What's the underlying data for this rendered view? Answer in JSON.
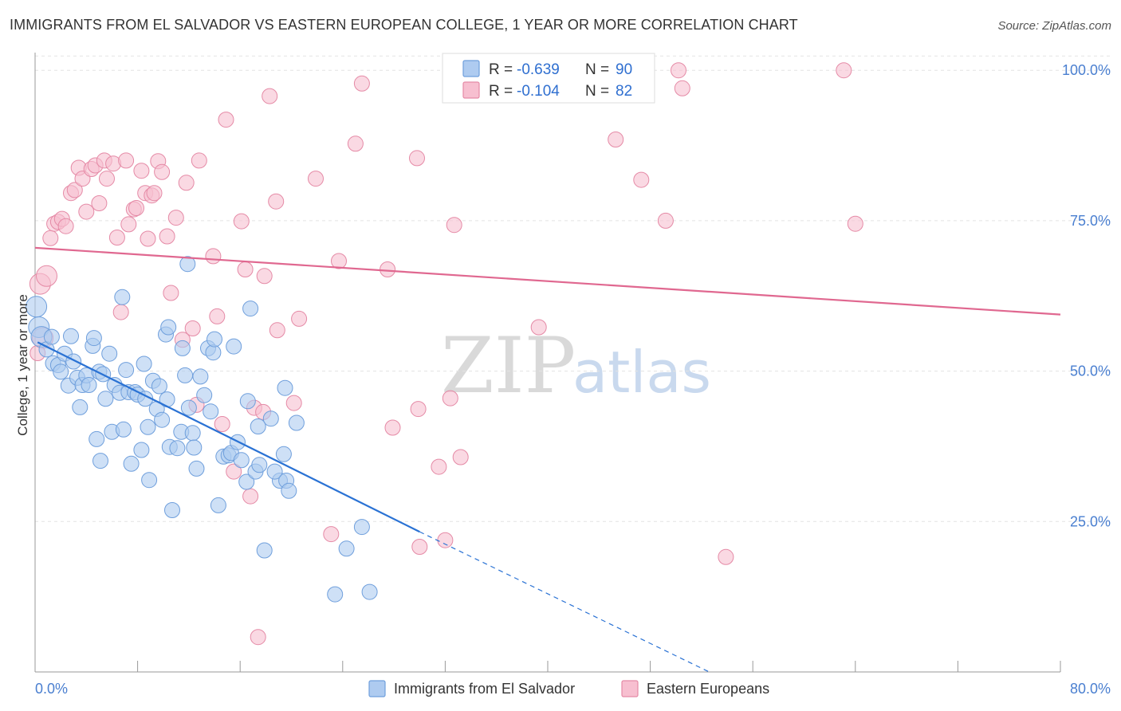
{
  "title": "IMMIGRANTS FROM EL SALVADOR VS EASTERN EUROPEAN COLLEGE, 1 YEAR OR MORE CORRELATION CHART",
  "source": "Source: ZipAtlas.com",
  "colors": {
    "blue_fill": "#aecbf0",
    "blue_stroke": "#6f9fdc",
    "blue_line": "#2a72d4",
    "pink_fill": "#f7bfd0",
    "pink_stroke": "#e58aa6",
    "pink_line": "#e06890",
    "axis_text": "#4a7fd0",
    "grid": "#e3e3e3"
  },
  "legend": {
    "r_label": "R =",
    "n_label": "N =",
    "rows": [
      {
        "r": "-0.639",
        "n": "90"
      },
      {
        "r": "-0.104",
        "n": "82"
      }
    ]
  },
  "watermark": {
    "zip": "ZIP",
    "atlas": "atlas"
  },
  "chart_data": {
    "type": "scatter",
    "xlabel": "",
    "ylabel": "College, 1 year or more",
    "xlim": [
      0,
      80
    ],
    "ylim": [
      0,
      104
    ],
    "x_tick_labels": [
      "0.0%",
      "80.0%"
    ],
    "y_ticks": [
      25,
      50,
      75,
      100
    ],
    "y_tick_labels": [
      "25.0%",
      "50.0%",
      "75.0%",
      "100.0%"
    ],
    "grid": "horizontal dashed",
    "legend_position": "top-center and bottom",
    "series": [
      {
        "name": "Immigrants from El Salvador",
        "color": "#aecbf0",
        "r": -0.639,
        "n": 90,
        "trend": {
          "x0": 0.2,
          "y0": 54.8,
          "x1": 30.0,
          "y1": 23.3,
          "dash_to_x": 52.6,
          "dash_to_y": 0.0
        },
        "points": [
          [
            0.1,
            60.7
          ],
          [
            0.3,
            57.3
          ],
          [
            0.5,
            55.7
          ],
          [
            0.9,
            53.6
          ],
          [
            1.3,
            55.7
          ],
          [
            1.4,
            51.3
          ],
          [
            1.8,
            51.0
          ],
          [
            2.0,
            49.9
          ],
          [
            2.3,
            52.9
          ],
          [
            2.6,
            47.6
          ],
          [
            2.8,
            55.8
          ],
          [
            3.0,
            51.6
          ],
          [
            3.3,
            48.9
          ],
          [
            3.5,
            44.0
          ],
          [
            3.7,
            47.7
          ],
          [
            4.0,
            49.3
          ],
          [
            4.2,
            47.7
          ],
          [
            4.5,
            54.2
          ],
          [
            4.6,
            55.5
          ],
          [
            4.8,
            38.7
          ],
          [
            5.0,
            49.9
          ],
          [
            5.1,
            35.1
          ],
          [
            5.3,
            49.5
          ],
          [
            5.5,
            45.4
          ],
          [
            5.8,
            52.9
          ],
          [
            6.0,
            39.9
          ],
          [
            6.2,
            47.7
          ],
          [
            6.6,
            46.4
          ],
          [
            6.8,
            62.3
          ],
          [
            6.9,
            40.3
          ],
          [
            7.1,
            50.2
          ],
          [
            7.3,
            46.5
          ],
          [
            7.5,
            34.6
          ],
          [
            7.8,
            46.5
          ],
          [
            8.0,
            46.1
          ],
          [
            8.3,
            36.9
          ],
          [
            8.5,
            51.2
          ],
          [
            8.6,
            45.4
          ],
          [
            8.8,
            40.7
          ],
          [
            8.9,
            31.9
          ],
          [
            9.2,
            48.4
          ],
          [
            9.5,
            43.7
          ],
          [
            9.7,
            47.5
          ],
          [
            9.9,
            41.9
          ],
          [
            10.2,
            56.1
          ],
          [
            10.3,
            45.3
          ],
          [
            10.4,
            57.3
          ],
          [
            10.5,
            37.4
          ],
          [
            10.7,
            26.9
          ],
          [
            11.1,
            37.2
          ],
          [
            11.4,
            39.9
          ],
          [
            11.5,
            53.8
          ],
          [
            11.7,
            49.3
          ],
          [
            11.9,
            67.8
          ],
          [
            12.0,
            43.9
          ],
          [
            12.3,
            39.7
          ],
          [
            12.4,
            37.3
          ],
          [
            12.6,
            33.8
          ],
          [
            12.9,
            49.1
          ],
          [
            13.2,
            46.0
          ],
          [
            13.5,
            53.8
          ],
          [
            13.7,
            43.3
          ],
          [
            13.9,
            53.1
          ],
          [
            14.0,
            55.3
          ],
          [
            14.3,
            27.7
          ],
          [
            14.7,
            35.8
          ],
          [
            15.1,
            36.0
          ],
          [
            15.3,
            36.4
          ],
          [
            15.5,
            54.1
          ],
          [
            15.8,
            38.2
          ],
          [
            16.1,
            35.2
          ],
          [
            16.5,
            31.6
          ],
          [
            16.6,
            45.0
          ],
          [
            16.8,
            60.4
          ],
          [
            17.2,
            33.3
          ],
          [
            17.4,
            40.8
          ],
          [
            17.5,
            34.4
          ],
          [
            17.9,
            20.2
          ],
          [
            18.4,
            42.1
          ],
          [
            19.1,
            31.8
          ],
          [
            18.7,
            33.3
          ],
          [
            19.4,
            36.2
          ],
          [
            19.5,
            47.2
          ],
          [
            19.6,
            31.8
          ],
          [
            19.8,
            30.1
          ],
          [
            20.4,
            41.4
          ],
          [
            23.4,
            12.9
          ],
          [
            24.3,
            20.5
          ],
          [
            25.5,
            24.1
          ],
          [
            26.1,
            13.3
          ]
        ]
      },
      {
        "name": "Eastern Europeans",
        "color": "#f7bfd0",
        "r": -0.104,
        "n": 82,
        "trend": {
          "x0": 0.0,
          "y0": 70.5,
          "x1": 80.0,
          "y1": 59.4
        },
        "points": [
          [
            0.4,
            64.5
          ],
          [
            0.6,
            55.5
          ],
          [
            0.9,
            65.8
          ],
          [
            1.2,
            72.1
          ],
          [
            1.5,
            74.5
          ],
          [
            1.8,
            74.8
          ],
          [
            2.1,
            75.3
          ],
          [
            2.4,
            74.1
          ],
          [
            2.8,
            79.6
          ],
          [
            3.1,
            80.1
          ],
          [
            3.4,
            83.8
          ],
          [
            3.7,
            82.0
          ],
          [
            4.0,
            76.5
          ],
          [
            4.4,
            83.6
          ],
          [
            4.7,
            84.2
          ],
          [
            5.0,
            77.9
          ],
          [
            5.4,
            85.0
          ],
          [
            5.6,
            82.0
          ],
          [
            6.1,
            84.5
          ],
          [
            6.4,
            72.2
          ],
          [
            6.7,
            59.8
          ],
          [
            7.1,
            85.0
          ],
          [
            7.3,
            74.4
          ],
          [
            7.7,
            76.9
          ],
          [
            7.9,
            77.1
          ],
          [
            8.3,
            83.3
          ],
          [
            8.6,
            79.6
          ],
          [
            8.8,
            72.0
          ],
          [
            9.1,
            79.2
          ],
          [
            9.3,
            79.6
          ],
          [
            9.6,
            84.9
          ],
          [
            9.9,
            83.1
          ],
          [
            10.3,
            72.4
          ],
          [
            10.6,
            63.0
          ],
          [
            11.0,
            75.5
          ],
          [
            11.5,
            55.2
          ],
          [
            11.8,
            81.3
          ],
          [
            12.3,
            57.1
          ],
          [
            12.6,
            44.4
          ],
          [
            12.8,
            85.0
          ],
          [
            13.9,
            69.1
          ],
          [
            14.2,
            59.1
          ],
          [
            14.6,
            41.2
          ],
          [
            14.9,
            91.8
          ],
          [
            15.5,
            33.3
          ],
          [
            16.1,
            74.9
          ],
          [
            16.4,
            66.9
          ],
          [
            16.8,
            29.2
          ],
          [
            17.1,
            43.9
          ],
          [
            17.4,
            5.8
          ],
          [
            17.8,
            43.2
          ],
          [
            17.9,
            65.8
          ],
          [
            18.3,
            95.7
          ],
          [
            18.8,
            78.2
          ],
          [
            18.9,
            56.8
          ],
          [
            20.2,
            44.7
          ],
          [
            20.6,
            58.7
          ],
          [
            21.9,
            82.0
          ],
          [
            23.1,
            22.9
          ],
          [
            23.7,
            68.3
          ],
          [
            25.0,
            87.8
          ],
          [
            25.5,
            97.8
          ],
          [
            27.5,
            66.9
          ],
          [
            27.9,
            40.6
          ],
          [
            29.8,
            85.4
          ],
          [
            29.9,
            43.7
          ],
          [
            30.0,
            20.8
          ],
          [
            31.5,
            34.1
          ],
          [
            32.0,
            21.9
          ],
          [
            32.4,
            45.5
          ],
          [
            32.7,
            74.3
          ],
          [
            33.2,
            35.7
          ],
          [
            39.3,
            57.3
          ],
          [
            45.3,
            88.5
          ],
          [
            47.3,
            81.8
          ],
          [
            49.2,
            75.0
          ],
          [
            50.2,
            100.0
          ],
          [
            50.5,
            97.0
          ],
          [
            53.9,
            19.1
          ],
          [
            63.1,
            100.0
          ],
          [
            64.0,
            74.5
          ],
          [
            0.2,
            53.0
          ]
        ]
      }
    ]
  },
  "bottom_legend": {
    "items": [
      "Immigrants from El Salvador",
      "Eastern Europeans"
    ]
  }
}
